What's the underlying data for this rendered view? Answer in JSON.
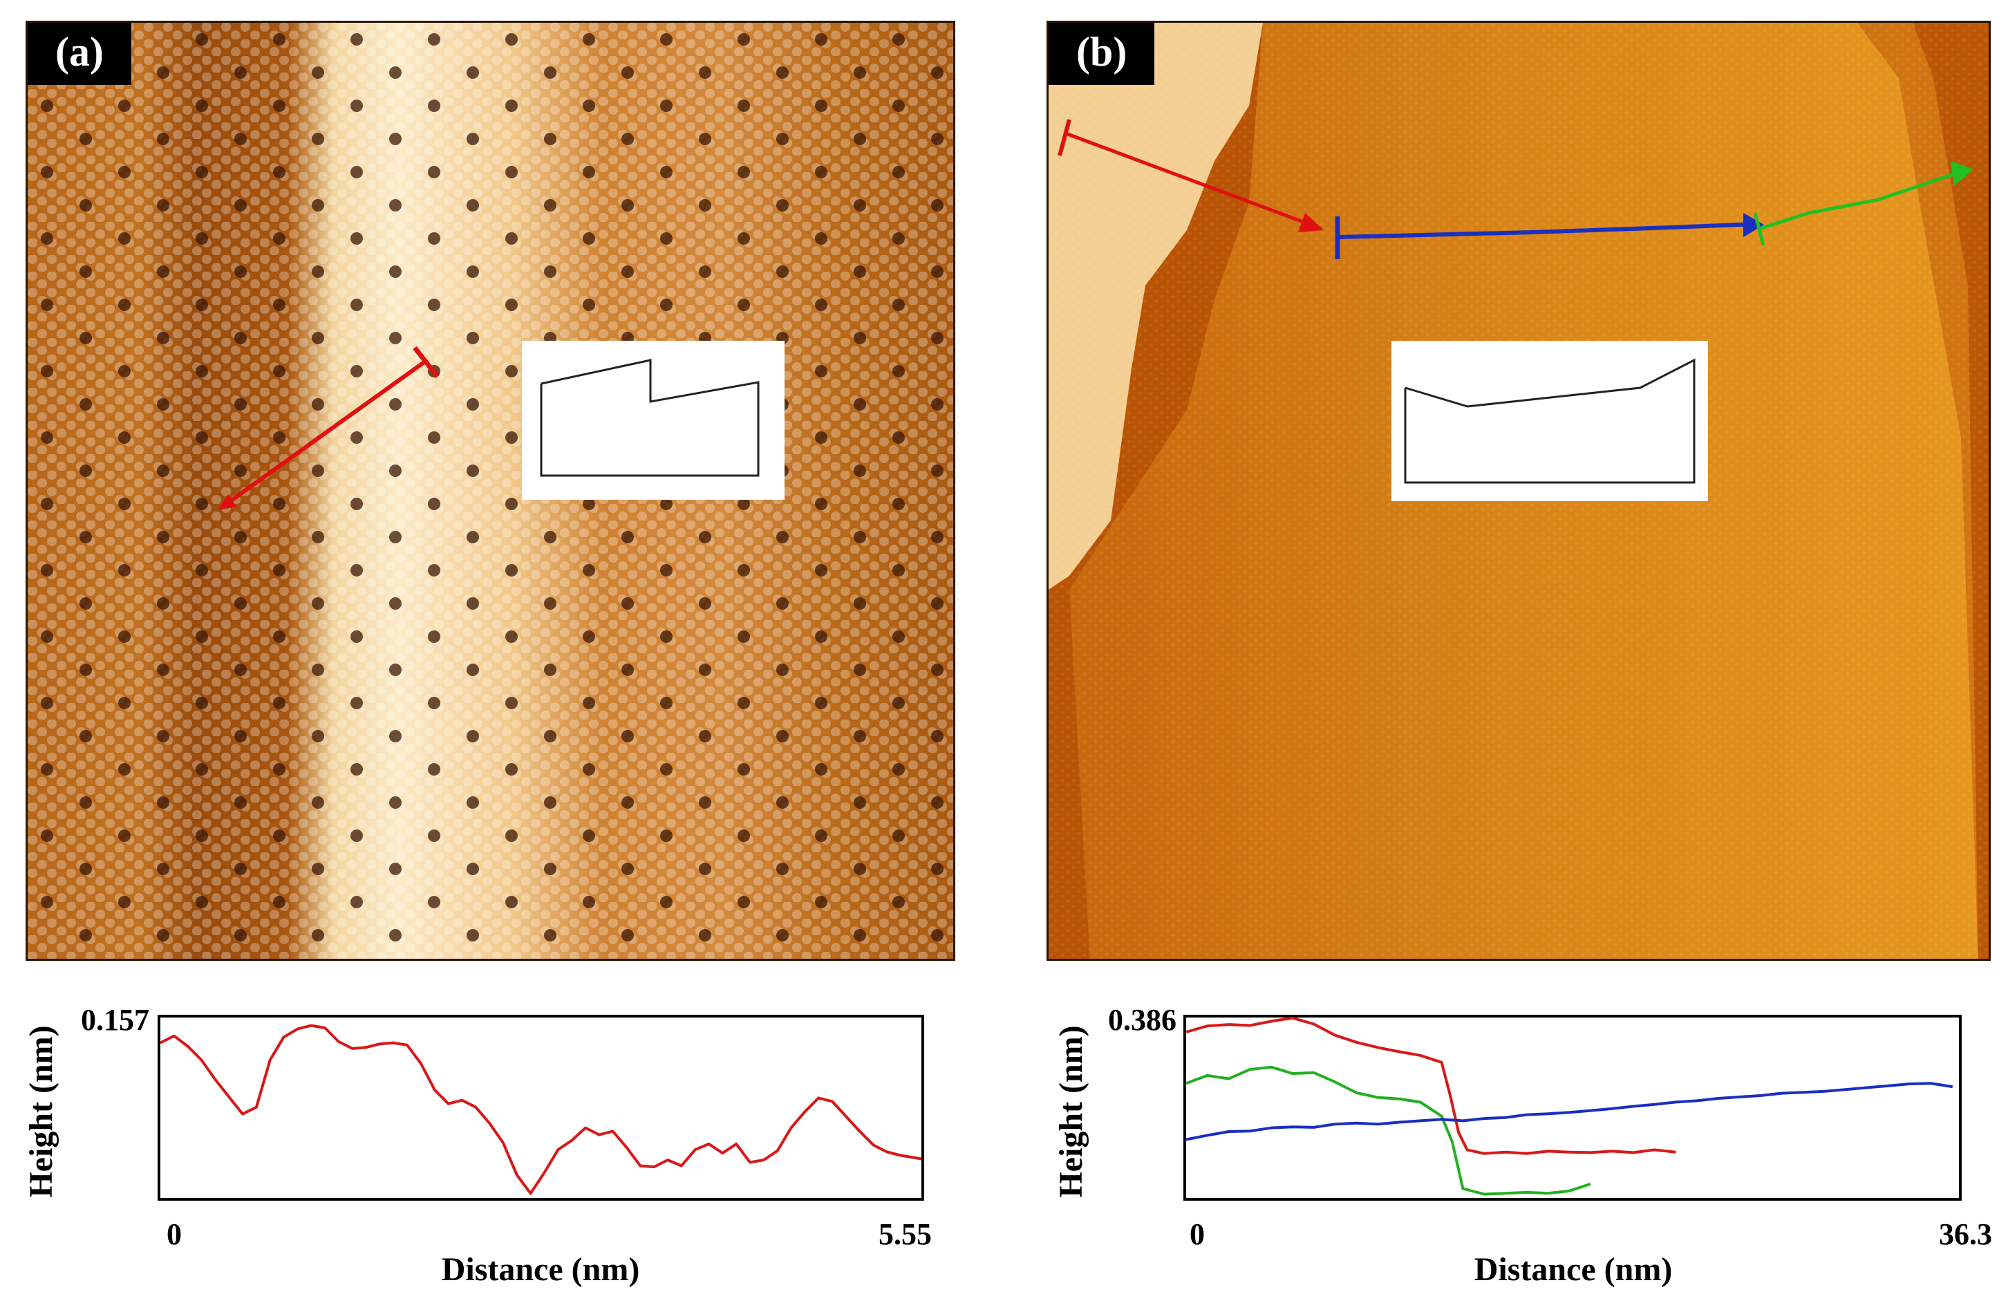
{
  "panels": [
    {
      "label": "(a)",
      "chart_data": {
        "type": "line",
        "title": "",
        "xlabel": "Distance (nm)",
        "ylabel": "Height (nm)",
        "xlim": [
          0,
          5.55
        ],
        "ylim": [
          0,
          0.157
        ],
        "x_tick_labels": [
          "0",
          "5.55"
        ],
        "y_tick_labels": [
          "0.157"
        ],
        "series": [
          {
            "name": "red profile",
            "color": "#d81818",
            "x": [
              0,
              0.1,
              0.2,
              0.3,
              0.4,
              0.5,
              0.6,
              0.7,
              0.8,
              0.9,
              1.0,
              1.1,
              1.2,
              1.3,
              1.4,
              1.5,
              1.6,
              1.7,
              1.8,
              1.9,
              2.0,
              2.1,
              2.2,
              2.3,
              2.4,
              2.5,
              2.6,
              2.7,
              2.8,
              2.9,
              3.0,
              3.1,
              3.2,
              3.3,
              3.4,
              3.5,
              3.6,
              3.7,
              3.8,
              3.9,
              4.0,
              4.1,
              4.2,
              4.3,
              4.4,
              4.5,
              4.6,
              4.7,
              4.8,
              4.9,
              5.0,
              5.1,
              5.2,
              5.3,
              5.4,
              5.55
            ],
            "values": [
              0.135,
              0.141,
              0.132,
              0.12,
              0.103,
              0.088,
              0.073,
              0.079,
              0.12,
              0.14,
              0.147,
              0.15,
              0.148,
              0.136,
              0.13,
              0.131,
              0.134,
              0.135,
              0.133,
              0.117,
              0.094,
              0.082,
              0.085,
              0.079,
              0.065,
              0.048,
              0.02,
              0.004,
              0.022,
              0.042,
              0.05,
              0.061,
              0.055,
              0.058,
              0.044,
              0.028,
              0.027,
              0.033,
              0.028,
              0.042,
              0.047,
              0.039,
              0.047,
              0.031,
              0.033,
              0.041,
              0.061,
              0.075,
              0.087,
              0.084,
              0.071,
              0.058,
              0.046,
              0.04,
              0.037,
              0.034
            ]
          }
        ]
      }
    },
    {
      "label": "(b)",
      "chart_data": {
        "type": "line",
        "title": "",
        "xlabel": "Distance (nm)",
        "ylabel": "Height (nm)",
        "xlim": [
          0,
          36.3
        ],
        "ylim": [
          0,
          0.386
        ],
        "x_tick_labels": [
          "0",
          "36.3"
        ],
        "y_tick_labels": [
          "0.386"
        ],
        "series": [
          {
            "name": "red profile",
            "color": "#d81818",
            "x": [
              0,
              1,
              2,
              3,
              4,
              5,
              6,
              7,
              8,
              9,
              10,
              11,
              12,
              12.4,
              12.8,
              13.2,
              14,
              15,
              16,
              17,
              18,
              19,
              20,
              21,
              22,
              23
            ],
            "values": [
              0.355,
              0.368,
              0.371,
              0.369,
              0.378,
              0.385,
              0.372,
              0.348,
              0.333,
              0.322,
              0.313,
              0.305,
              0.29,
              0.22,
              0.14,
              0.103,
              0.095,
              0.098,
              0.095,
              0.1,
              0.098,
              0.097,
              0.1,
              0.097,
              0.103,
              0.098
            ]
          },
          {
            "name": "green profile",
            "color": "#22b022",
            "x": [
              0,
              1,
              2,
              3,
              4,
              5,
              6,
              7,
              8,
              9,
              10,
              11,
              12,
              12.5,
              13,
              14,
              15,
              16,
              17,
              18,
              19
            ],
            "values": [
              0.245,
              0.262,
              0.255,
              0.275,
              0.28,
              0.266,
              0.268,
              0.248,
              0.225,
              0.215,
              0.212,
              0.205,
              0.175,
              0.12,
              0.02,
              0.008,
              0.01,
              0.012,
              0.01,
              0.015,
              0.03
            ]
          },
          {
            "name": "blue profile",
            "color": "#1a2fc0",
            "x": [
              0,
              1,
              2,
              3,
              4,
              5,
              6,
              7,
              8,
              9,
              10,
              11,
              12,
              13,
              14,
              15,
              16,
              17,
              18,
              19,
              20,
              21,
              22,
              23,
              24,
              25,
              26,
              27,
              28,
              29,
              30,
              31,
              32,
              33,
              34,
              35,
              36
            ],
            "values": [
              0.125,
              0.134,
              0.142,
              0.143,
              0.15,
              0.152,
              0.151,
              0.158,
              0.16,
              0.158,
              0.162,
              0.165,
              0.168,
              0.165,
              0.17,
              0.172,
              0.178,
              0.18,
              0.183,
              0.187,
              0.191,
              0.196,
              0.2,
              0.205,
              0.208,
              0.213,
              0.216,
              0.219,
              0.224,
              0.226,
              0.228,
              0.232,
              0.236,
              0.24,
              0.244,
              0.245,
              0.238
            ]
          }
        ]
      }
    }
  ]
}
